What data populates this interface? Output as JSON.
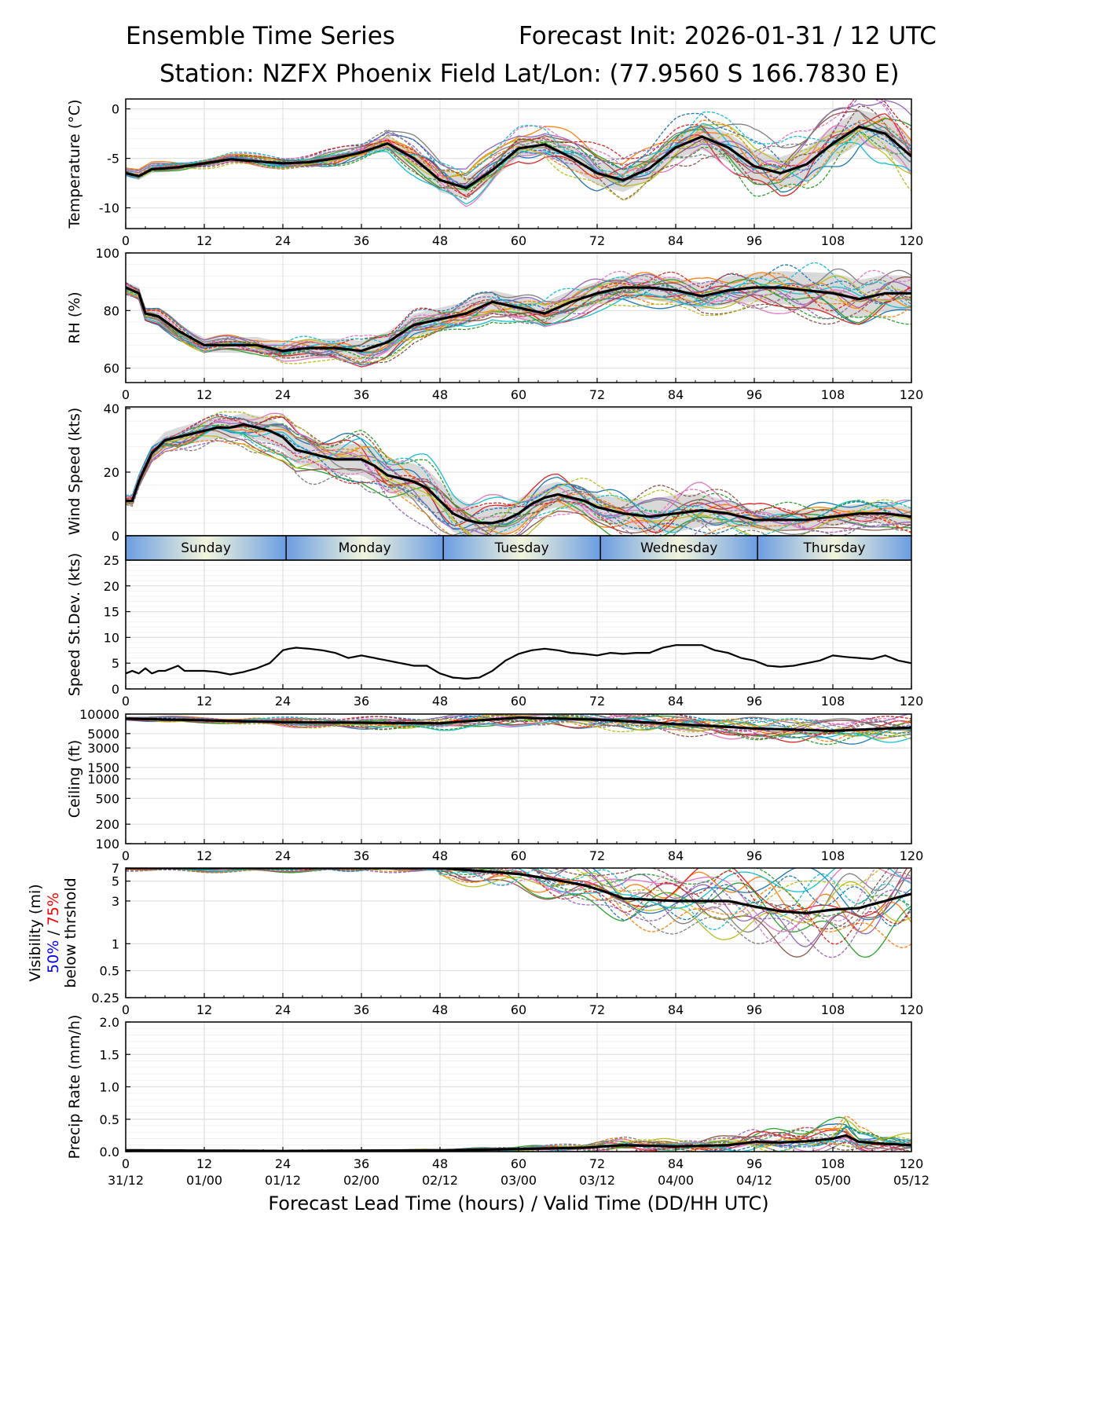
{
  "header": {
    "title": "Ensemble Time Series",
    "init": "Forecast Init: 2026-01-31 / 12 UTC",
    "station": "Station: NZFX Phoenix Field",
    "latlon": "Lat/Lon: (77.9560 S 166.7830 E)"
  },
  "colors": {
    "members": [
      "#1f77b4",
      "#ff7f0e",
      "#2ca02c",
      "#d62728",
      "#9467bd",
      "#8c564b",
      "#e377c2",
      "#7f7f7f",
      "#bcbd22",
      "#17becf"
    ],
    "mean": "#000000",
    "spread": "#cccccc",
    "day_gradient_edge": "#6b9de2",
    "day_gradient_center": "#f2f5dc",
    "vis_50": "#0000ff",
    "vis_75": "#ff0000"
  },
  "chart_data": {
    "type": "line",
    "xlabel": "Forecast Lead Time (hours) / Valid Time (DD/HH UTC)",
    "xlim": [
      0,
      120
    ],
    "x_ticks": [
      0,
      12,
      24,
      36,
      48,
      60,
      72,
      84,
      96,
      108,
      120
    ],
    "valid_time_labels": [
      "31/12",
      "01/00",
      "01/12",
      "02/00",
      "02/12",
      "03/00",
      "03/12",
      "04/00",
      "04/12",
      "05/00",
      "05/12"
    ],
    "days": [
      {
        "name": "Sunday",
        "start": 0,
        "end": 24.5
      },
      {
        "name": "Monday",
        "start": 24.5,
        "end": 48.5
      },
      {
        "name": "Tuesday",
        "start": 48.5,
        "end": 72.5
      },
      {
        "name": "Wednesday",
        "start": 72.5,
        "end": 96.5
      },
      {
        "name": "Thursday",
        "start": 96.5,
        "end": 120
      }
    ],
    "panels": [
      {
        "id": "temperature",
        "ylabel": "Temperature (°C)",
        "scale": "linear",
        "ylim": [
          -12.1,
          1.0
        ],
        "yticks": [
          0,
          -5,
          -10
        ],
        "ytick_labels": [
          "0",
          "-5",
          "-10"
        ],
        "mean": {
          "x": [
            0,
            2,
            4,
            8,
            12,
            16,
            20,
            24,
            28,
            32,
            36,
            40,
            44,
            48,
            52,
            56,
            60,
            64,
            68,
            72,
            76,
            80,
            84,
            88,
            92,
            96,
            100,
            104,
            108,
            112,
            116,
            120
          ],
          "y": [
            -6.5,
            -6.8,
            -6.1,
            -5.9,
            -5.5,
            -5.1,
            -5.3,
            -5.5,
            -5.4,
            -5.0,
            -4.4,
            -3.5,
            -5.0,
            -7.2,
            -8.0,
            -6.2,
            -4.0,
            -3.6,
            -4.9,
            -6.5,
            -7.2,
            -6.0,
            -3.9,
            -2.8,
            -3.9,
            -5.8,
            -6.5,
            -5.6,
            -3.5,
            -1.8,
            -2.5,
            -4.8
          ]
        },
        "spread": {
          "half_width_x": [
            0,
            24,
            36,
            48,
            60,
            72,
            84,
            96,
            108,
            120
          ],
          "half_width": [
            0.4,
            0.3,
            0.5,
            1.2,
            0.9,
            1.2,
            1.2,
            1.6,
            1.7,
            1.8
          ]
        }
      },
      {
        "id": "rh",
        "ylabel": "RH (%)",
        "scale": "linear",
        "ylim": [
          55,
          100
        ],
        "yticks": [
          100,
          80,
          60
        ],
        "ytick_labels": [
          "100",
          "80",
          "60"
        ],
        "mean": {
          "x": [
            0,
            2,
            3,
            5,
            8,
            12,
            16,
            20,
            24,
            28,
            32,
            36,
            40,
            44,
            48,
            52,
            56,
            60,
            64,
            68,
            72,
            76,
            80,
            84,
            88,
            92,
            96,
            100,
            104,
            108,
            112,
            116,
            120
          ],
          "y": [
            88,
            86,
            79,
            78,
            73,
            68,
            68,
            68,
            66,
            67,
            67,
            66,
            69,
            75,
            77,
            79,
            83,
            81,
            79,
            83,
            86,
            88,
            88,
            87,
            85,
            87,
            88,
            88,
            87,
            86,
            84,
            86,
            86
          ]
        },
        "spread": {
          "half_width_x": [
            0,
            24,
            48,
            72,
            96,
            108,
            120
          ],
          "half_width": [
            2,
            3,
            4,
            4,
            5,
            7,
            6
          ]
        }
      },
      {
        "id": "wind",
        "ylabel": "Wind Speed (kts)",
        "scale": "linear",
        "ylim": [
          0,
          40.5
        ],
        "yticks": [
          40,
          20,
          0
        ],
        "ytick_labels": [
          "40",
          "20",
          "0"
        ],
        "mean": {
          "x": [
            0,
            1,
            2,
            4,
            6,
            8,
            10,
            12,
            14,
            16,
            18,
            20,
            22,
            24,
            26,
            28,
            30,
            32,
            34,
            36,
            38,
            40,
            42,
            44,
            46,
            48,
            50,
            52,
            54,
            56,
            58,
            60,
            62,
            64,
            66,
            68,
            70,
            72,
            76,
            80,
            84,
            88,
            92,
            96,
            100,
            104,
            108,
            112,
            116,
            120
          ],
          "y": [
            11,
            11,
            17,
            26,
            30,
            31,
            32,
            33,
            34,
            34,
            35,
            34,
            33,
            31,
            27,
            26,
            25,
            24,
            24,
            24,
            22,
            19,
            18,
            17,
            15,
            11,
            7,
            5,
            4,
            4,
            5,
            7,
            10,
            12,
            13,
            12,
            11,
            9,
            7,
            6,
            7,
            8,
            7,
            5,
            5,
            5,
            6,
            7,
            7,
            6
          ]
        },
        "spread": {
          "half_width_x": [
            0,
            8,
            24,
            48,
            64,
            72,
            84,
            96,
            110,
            120
          ],
          "half_width": [
            1.5,
            3,
            4,
            6,
            4,
            4,
            6,
            3,
            3,
            3
          ]
        }
      },
      {
        "id": "sd",
        "ylabel": "Speed St.Dev. (kts)",
        "scale": "linear",
        "ylim": [
          0,
          25
        ],
        "yticks": [
          25,
          20,
          15,
          10,
          5,
          0
        ],
        "ytick_labels": [
          "25",
          "20",
          "15",
          "10",
          "5",
          "0"
        ],
        "series": [
          {
            "name": "Speed St.Dev.",
            "x": [
              0,
              1,
              2,
              3,
              4,
              5,
              6,
              7,
              8,
              9,
              10,
              12,
              14,
              16,
              18,
              20,
              22,
              24,
              25,
              26,
              28,
              30,
              32,
              34,
              36,
              38,
              40,
              42,
              44,
              46,
              48,
              50,
              52,
              54,
              56,
              58,
              60,
              62,
              64,
              66,
              68,
              70,
              72,
              74,
              76,
              78,
              80,
              82,
              84,
              86,
              88,
              90,
              92,
              94,
              96,
              98,
              100,
              102,
              104,
              106,
              108,
              110,
              112,
              114,
              116,
              118,
              120
            ],
            "y": [
              3,
              3.5,
              3,
              4,
              3,
              3.5,
              3.5,
              4,
              4.5,
              3.5,
              3.5,
              3.5,
              3.3,
              2.8,
              3.3,
              4,
              5,
              7.5,
              7.8,
              8,
              7.8,
              7.5,
              7,
              6,
              6.5,
              6,
              5.5,
              5,
              4.5,
              4.5,
              3,
              2.2,
              2,
              2.2,
              3.5,
              5.5,
              6.8,
              7.5,
              7.8,
              7.5,
              7,
              6.8,
              6.5,
              7,
              6.8,
              7,
              7,
              8,
              8.5,
              8.5,
              8.5,
              7.5,
              7,
              6,
              5.5,
              4.5,
              4.3,
              4.5,
              5,
              5.5,
              6.5,
              6.2,
              6,
              5.8,
              6.5,
              5.5,
              5
            ]
          }
        ]
      },
      {
        "id": "ceiling",
        "ylabel": "Ceiling (ft)",
        "scale": "log",
        "ylim": [
          100,
          10000
        ],
        "yticks": [
          10000,
          5000,
          3000,
          1500,
          1000,
          500,
          200,
          100
        ],
        "ytick_labels": [
          "10000",
          "5000",
          "3000",
          "1500",
          "1000",
          "500",
          "200",
          "100"
        ],
        "mean": {
          "x": [
            0,
            24,
            48,
            60,
            72,
            84,
            96,
            108,
            120
          ],
          "y": [
            8500,
            7500,
            7200,
            8800,
            8200,
            7000,
            6000,
            5500,
            6200
          ]
        }
      },
      {
        "id": "visibility",
        "ylabel": "Visibility (mi)",
        "ylabel_line2a": "50%",
        "ylabel_line2b": " / ",
        "ylabel_line2c": "75%",
        "ylabel_line3": "below thrshold",
        "scale": "log",
        "ylim": [
          0.25,
          7
        ],
        "yticks": [
          7,
          5,
          3,
          1,
          0.5,
          0.25
        ],
        "ytick_labels": [
          "7",
          "5",
          "3",
          "1",
          "0.5",
          "0.25"
        ],
        "mean": {
          "x": [
            0,
            48,
            60,
            70,
            76,
            84,
            92,
            96,
            100,
            104,
            108,
            112,
            116,
            120
          ],
          "y": [
            7,
            7,
            6,
            4.5,
            3.2,
            3,
            3,
            2.6,
            2.3,
            2.2,
            2.4,
            2.5,
            3,
            3.6
          ]
        }
      },
      {
        "id": "precip",
        "ylabel": "Precip Rate (mm/h)",
        "scale": "linear",
        "ylim": [
          0,
          2.0
        ],
        "yticks": [
          2.0,
          1.5,
          1.0,
          0.5,
          0.0
        ],
        "ytick_labels": [
          "2.0",
          "1.5",
          "1.0",
          "0.5",
          "0.0"
        ],
        "mean": {
          "x": [
            0,
            24,
            48,
            60,
            70,
            76,
            84,
            92,
            96,
            100,
            104,
            108,
            110,
            112,
            116,
            120
          ],
          "y": [
            0.02,
            0.01,
            0.02,
            0.04,
            0.06,
            0.1,
            0.08,
            0.1,
            0.15,
            0.14,
            0.16,
            0.2,
            0.25,
            0.15,
            0.12,
            0.1
          ]
        }
      }
    ]
  }
}
